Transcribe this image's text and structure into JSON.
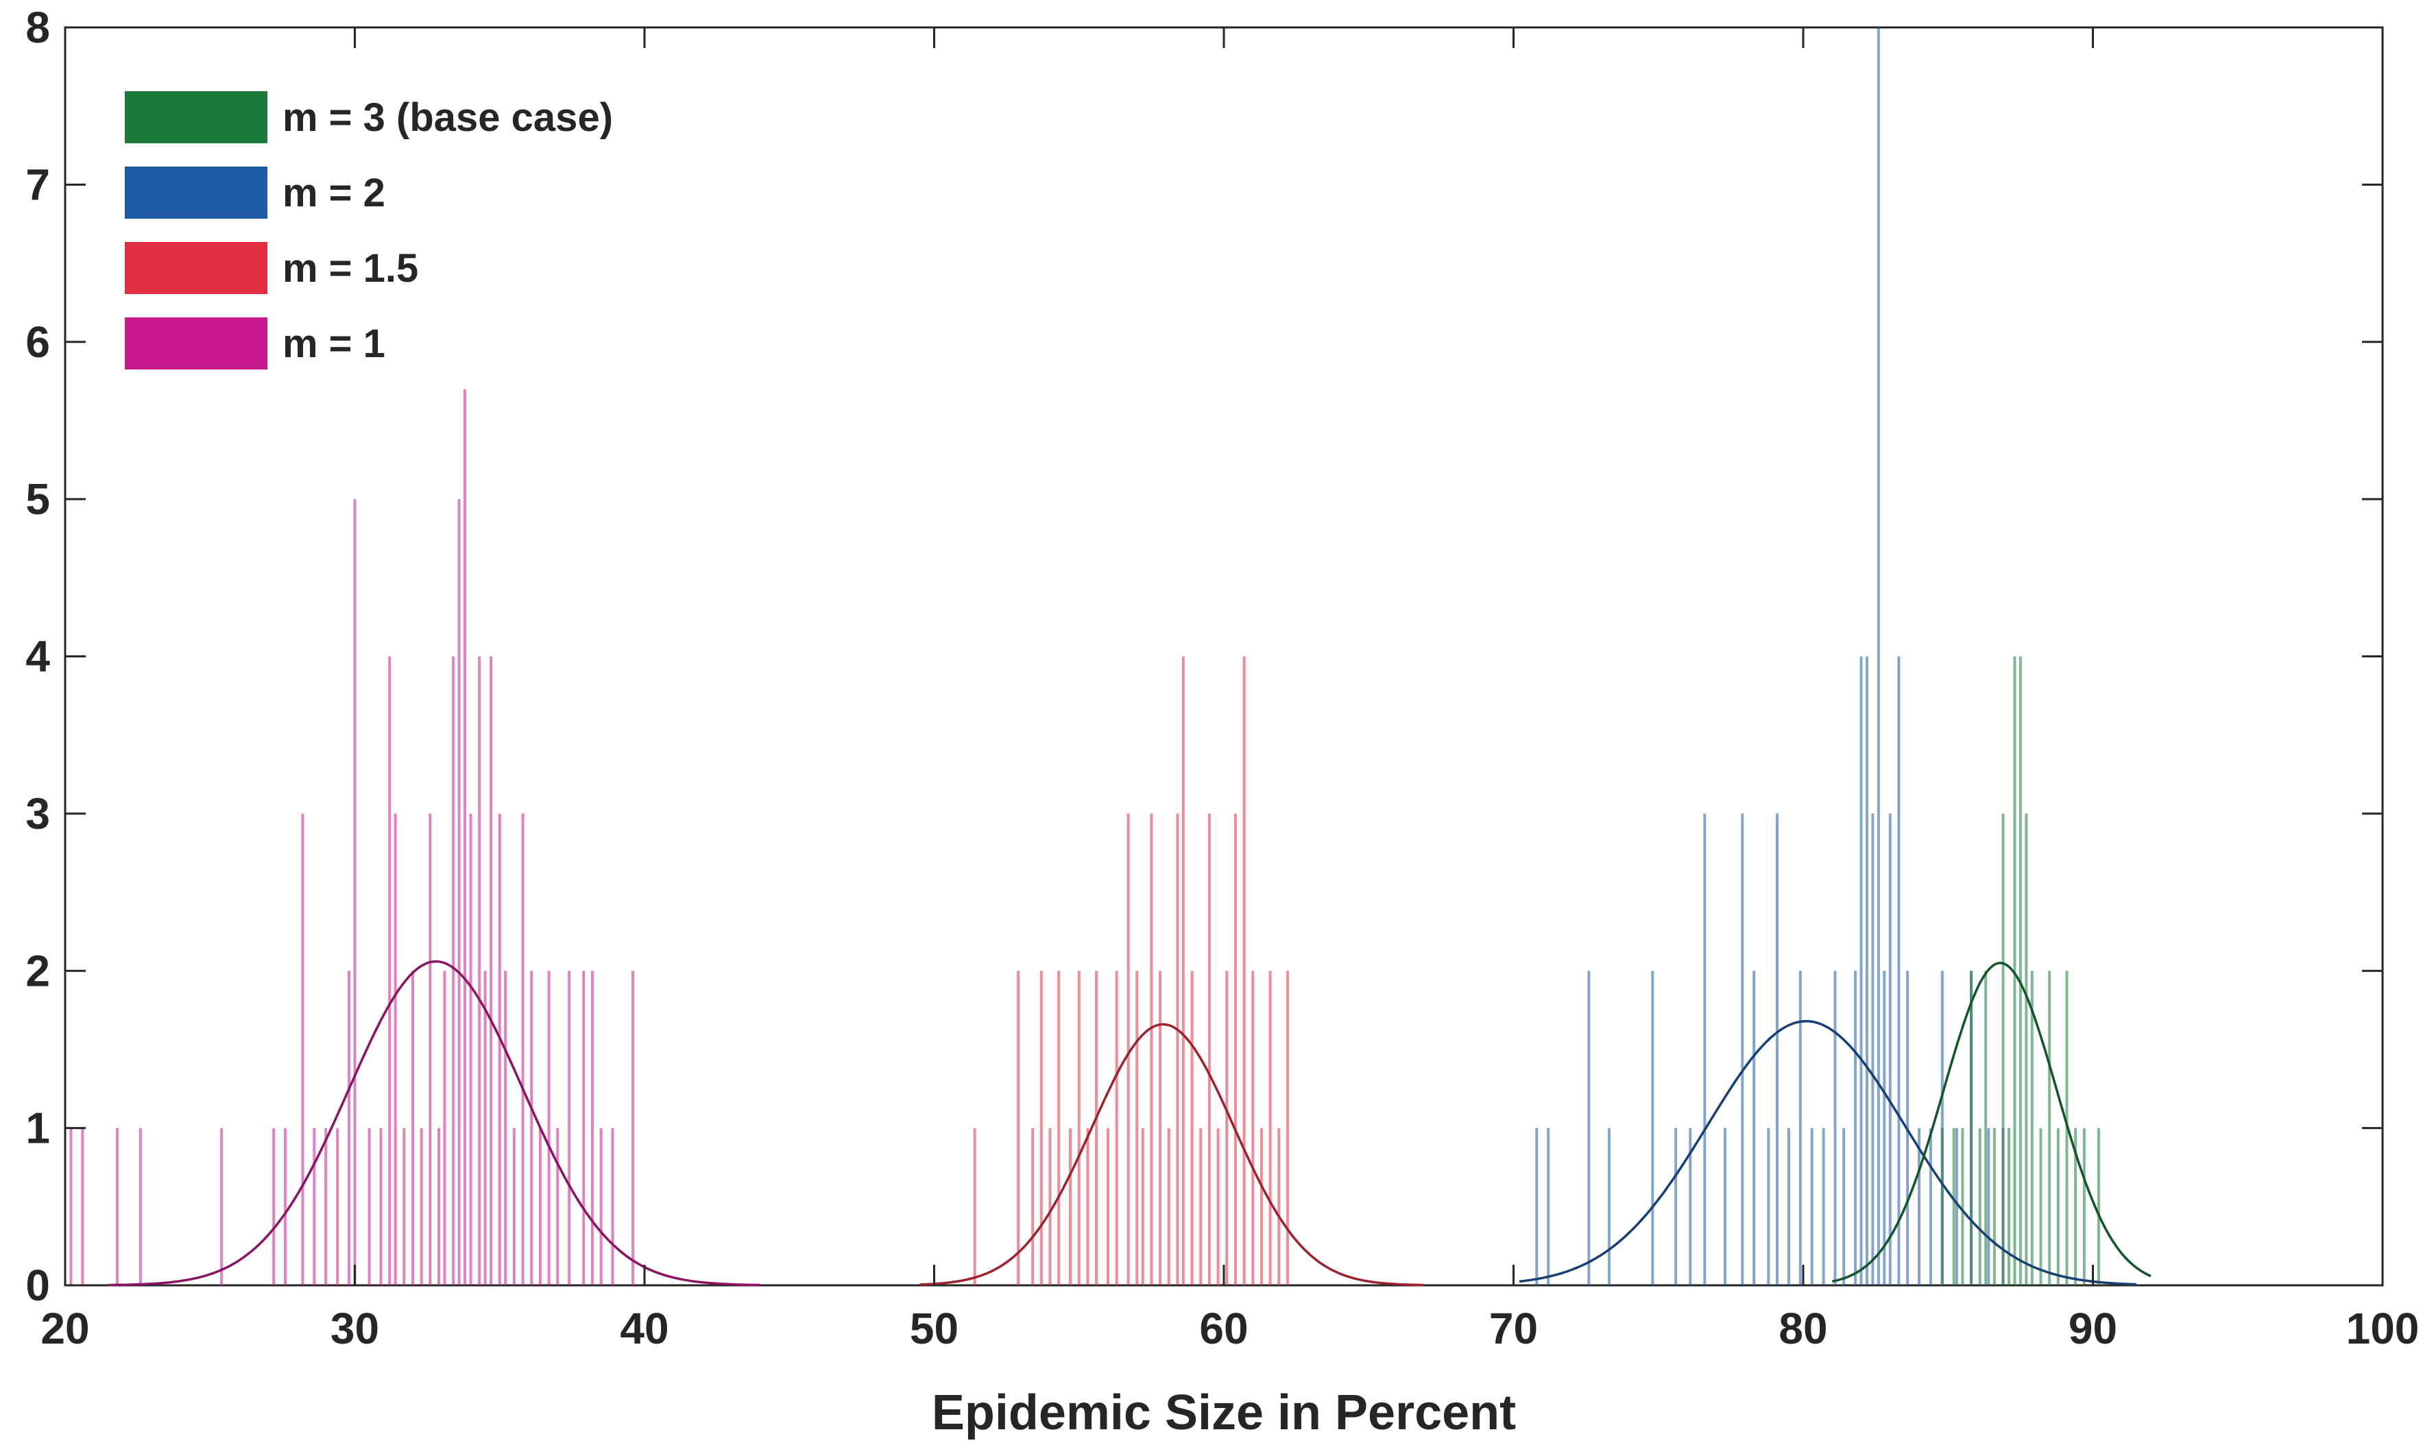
{
  "chart_data": {
    "type": "bar",
    "subtype": "histogram-with-normal-fit",
    "title": "",
    "xlabel": "Epidemic Size in Percent",
    "ylabel": "",
    "xlim": [
      20,
      100
    ],
    "ylim": [
      0,
      8
    ],
    "xticks": [
      20,
      30,
      40,
      50,
      60,
      70,
      80,
      90,
      100
    ],
    "yticks": [
      0,
      1,
      2,
      3,
      4,
      5,
      6,
      7,
      8
    ],
    "legend_position": "top-left",
    "series": [
      {
        "name": "m = 3 (base case)",
        "color": "#1a7a3a",
        "fit": {
          "mean": 86.8,
          "sd": 1.95,
          "peak": 2.05,
          "range": [
            81,
            92
          ]
        },
        "bins": [
          [
            84.8,
            1
          ],
          [
            85.2,
            1
          ],
          [
            85.5,
            1
          ],
          [
            85.8,
            2
          ],
          [
            86.1,
            1
          ],
          [
            86.3,
            2
          ],
          [
            86.6,
            1
          ],
          [
            86.9,
            3
          ],
          [
            87.1,
            1
          ],
          [
            87.3,
            4
          ],
          [
            87.5,
            4
          ],
          [
            87.7,
            3
          ],
          [
            87.9,
            2
          ],
          [
            88.2,
            1
          ],
          [
            88.5,
            2
          ],
          [
            88.8,
            1
          ],
          [
            89.1,
            2
          ],
          [
            89.4,
            1
          ],
          [
            89.7,
            1
          ],
          [
            90.2,
            1
          ]
        ]
      },
      {
        "name": "m = 2",
        "color": "#1f5aa6",
        "fit": {
          "mean": 80.1,
          "sd": 3.4,
          "peak": 1.68,
          "range": [
            70.2,
            91.5
          ]
        },
        "bins": [
          [
            70.8,
            1
          ],
          [
            71.2,
            1
          ],
          [
            72.6,
            2
          ],
          [
            73.3,
            1
          ],
          [
            74.8,
            2
          ],
          [
            75.6,
            1
          ],
          [
            76.1,
            1
          ],
          [
            76.6,
            3
          ],
          [
            77.3,
            1
          ],
          [
            77.9,
            3
          ],
          [
            78.3,
            2
          ],
          [
            78.8,
            1
          ],
          [
            79.1,
            3
          ],
          [
            79.5,
            1
          ],
          [
            79.9,
            2
          ],
          [
            80.3,
            1
          ],
          [
            80.7,
            1
          ],
          [
            81.1,
            2
          ],
          [
            81.4,
            1
          ],
          [
            81.8,
            2
          ],
          [
            82.0,
            4
          ],
          [
            82.2,
            4
          ],
          [
            82.4,
            3
          ],
          [
            82.6,
            8
          ],
          [
            82.8,
            2
          ],
          [
            83.0,
            3
          ],
          [
            83.3,
            4
          ],
          [
            83.6,
            2
          ],
          [
            84.0,
            1
          ],
          [
            84.4,
            1
          ],
          [
            84.8,
            2
          ],
          [
            85.3,
            1
          ],
          [
            85.8,
            2
          ],
          [
            86.4,
            1
          ],
          [
            86.9,
            1
          ]
        ]
      },
      {
        "name": "m = 1.5",
        "color": "#e03040",
        "fit": {
          "mean": 57.9,
          "sd": 2.45,
          "peak": 1.66,
          "range": [
            49.5,
            66.9
          ]
        },
        "bins": [
          [
            51.4,
            1
          ],
          [
            52.9,
            2
          ],
          [
            53.4,
            1
          ],
          [
            53.7,
            2
          ],
          [
            54.0,
            1
          ],
          [
            54.3,
            2
          ],
          [
            54.7,
            1
          ],
          [
            55.0,
            2
          ],
          [
            55.3,
            1
          ],
          [
            55.6,
            2
          ],
          [
            56.0,
            1
          ],
          [
            56.3,
            2
          ],
          [
            56.7,
            3
          ],
          [
            57.0,
            2
          ],
          [
            57.2,
            1
          ],
          [
            57.5,
            3
          ],
          [
            57.8,
            2
          ],
          [
            58.1,
            1
          ],
          [
            58.4,
            3
          ],
          [
            58.6,
            4
          ],
          [
            58.9,
            2
          ],
          [
            59.2,
            1
          ],
          [
            59.5,
            3
          ],
          [
            59.8,
            1
          ],
          [
            60.1,
            2
          ],
          [
            60.4,
            3
          ],
          [
            60.7,
            4
          ],
          [
            61.0,
            2
          ],
          [
            61.3,
            1
          ],
          [
            61.6,
            2
          ],
          [
            61.9,
            1
          ],
          [
            62.2,
            2
          ]
        ]
      },
      {
        "name": "m = 1",
        "color": "#c8198c",
        "fit": {
          "mean": 32.8,
          "sd": 3.0,
          "peak": 2.06,
          "range": [
            21.5,
            44
          ]
        },
        "bins": [
          [
            20.2,
            1
          ],
          [
            20.6,
            1
          ],
          [
            21.8,
            1
          ],
          [
            22.6,
            1
          ],
          [
            25.4,
            1
          ],
          [
            27.2,
            1
          ],
          [
            27.6,
            1
          ],
          [
            28.2,
            3
          ],
          [
            28.6,
            1
          ],
          [
            29.0,
            1
          ],
          [
            29.4,
            1
          ],
          [
            29.8,
            2
          ],
          [
            30.0,
            5
          ],
          [
            30.5,
            1
          ],
          [
            30.9,
            1
          ],
          [
            31.2,
            4
          ],
          [
            31.4,
            3
          ],
          [
            31.7,
            1
          ],
          [
            32.0,
            2
          ],
          [
            32.3,
            1
          ],
          [
            32.6,
            3
          ],
          [
            32.9,
            1
          ],
          [
            33.1,
            2
          ],
          [
            33.4,
            4
          ],
          [
            33.6,
            5
          ],
          [
            33.8,
            5.7
          ],
          [
            34.0,
            3
          ],
          [
            34.3,
            4
          ],
          [
            34.5,
            2
          ],
          [
            34.7,
            4
          ],
          [
            35.0,
            3
          ],
          [
            35.2,
            2
          ],
          [
            35.5,
            1
          ],
          [
            35.8,
            3
          ],
          [
            36.1,
            2
          ],
          [
            36.4,
            1
          ],
          [
            36.7,
            2
          ],
          [
            37.0,
            1
          ],
          [
            37.4,
            2
          ],
          [
            37.9,
            2
          ],
          [
            38.2,
            2
          ],
          [
            38.5,
            1
          ],
          [
            38.9,
            1
          ],
          [
            39.6,
            2
          ]
        ]
      }
    ]
  }
}
